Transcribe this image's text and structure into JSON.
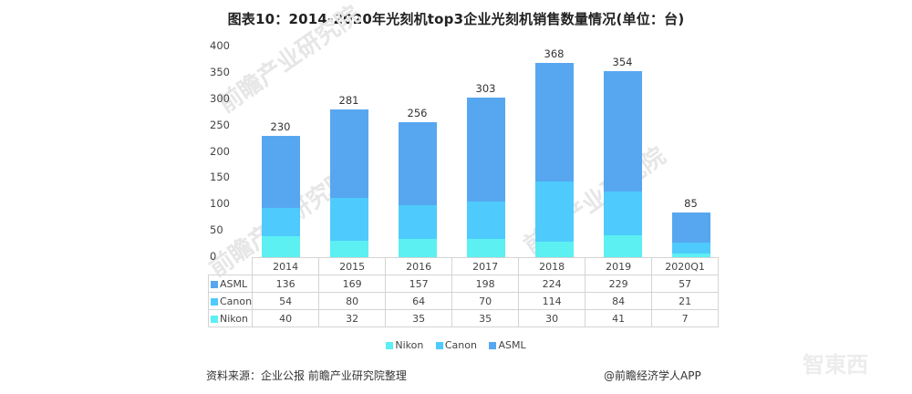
{
  "title": "图表10：2014-2020年光刻机top3企业光刻机销售数量情况(单位：台)",
  "colors": {
    "ASML": "#57a7f0",
    "Canon": "#4ecbfc",
    "Nikon": "#5cf0f2"
  },
  "y_ticks": [
    "400",
    "350",
    "300",
    "250",
    "200",
    "150",
    "100",
    "50",
    "0"
  ],
  "table": {
    "header": [
      "2014",
      "2015",
      "2016",
      "2017",
      "2018",
      "2019",
      "2020Q1"
    ],
    "rows": [
      {
        "label": "ASML",
        "values": [
          "136",
          "169",
          "157",
          "198",
          "224",
          "229",
          "57"
        ]
      },
      {
        "label": "Canon",
        "values": [
          "54",
          "80",
          "64",
          "70",
          "114",
          "84",
          "21"
        ]
      },
      {
        "label": "Nikon",
        "values": [
          "40",
          "32",
          "35",
          "35",
          "30",
          "41",
          "7"
        ]
      }
    ]
  },
  "totals": [
    "230",
    "281",
    "256",
    "303",
    "368",
    "354",
    "85"
  ],
  "legend": [
    "Nikon",
    "Canon",
    "ASML"
  ],
  "footer": {
    "source": "资料来源：企业公报 前瞻产业研究院整理",
    "credit": "@前瞻经济学人APP"
  },
  "watermarks": {
    "brand": "前瞻产业研究院",
    "corner": "智東西"
  },
  "chart_data": {
    "type": "bar",
    "stacked": true,
    "title": "图表10：2014-2020年光刻机top3企业光刻机销售数量情况(单位：台)",
    "categories": [
      "2014",
      "2015",
      "2016",
      "2017",
      "2018",
      "2019",
      "2020Q1"
    ],
    "series": [
      {
        "name": "Nikon",
        "values": [
          40,
          32,
          35,
          35,
          30,
          41,
          7
        ]
      },
      {
        "name": "Canon",
        "values": [
          54,
          80,
          64,
          70,
          114,
          84,
          21
        ]
      },
      {
        "name": "ASML",
        "values": [
          136,
          169,
          157,
          198,
          224,
          229,
          57
        ]
      }
    ],
    "totals": [
      230,
      281,
      256,
      303,
      368,
      354,
      85
    ],
    "xlabel": "",
    "ylabel": "",
    "ylim": [
      0,
      400
    ],
    "yticks": [
      0,
      50,
      100,
      150,
      200,
      250,
      300,
      350,
      400
    ],
    "grid": false,
    "legend_position": "bottom",
    "data_table": true
  }
}
